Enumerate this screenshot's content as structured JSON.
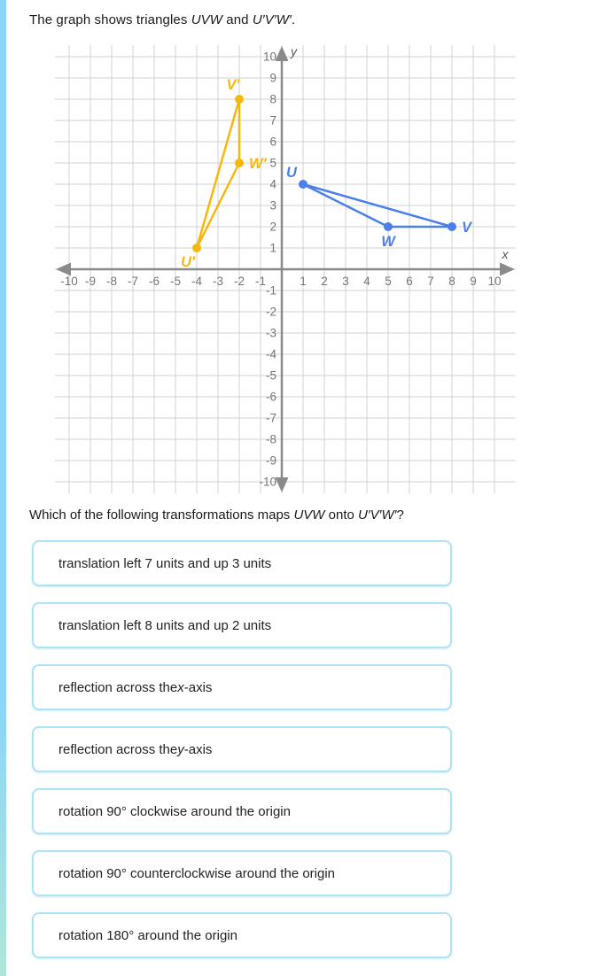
{
  "colors": {
    "accent_bar_top": "#8dd5f7",
    "accent_bar_bottom": "#aee6d9",
    "button_border": "#aee3f7",
    "grid": "#d2d2d2",
    "axis": "#8a8a8a",
    "tick_text": "#757575",
    "axis_letter": "#555555",
    "triangle_uvw": "#4a80e8",
    "triangle_primed": "#f7b80d"
  },
  "title_parts": [
    {
      "t": "The graph shows triangles "
    },
    {
      "t": "UVW",
      "i": true
    },
    {
      "t": " and "
    },
    {
      "t": "U′V′W′",
      "i": true
    },
    {
      "t": "."
    }
  ],
  "question_parts": [
    {
      "t": "Which of the following transformations maps "
    },
    {
      "t": "UVW",
      "i": true
    },
    {
      "t": " onto "
    },
    {
      "t": "U′V′W′",
      "i": true
    },
    {
      "t": "?"
    }
  ],
  "options": [
    {
      "parts": [
        {
          "t": "translation left 7 units and up 3 units"
        }
      ]
    },
    {
      "parts": [
        {
          "t": "translation left 8 units and up 2 units"
        }
      ]
    },
    {
      "parts": [
        {
          "t": "reflection across the "
        },
        {
          "t": "x",
          "i": true
        },
        {
          "t": "-axis"
        }
      ]
    },
    {
      "parts": [
        {
          "t": "reflection across the "
        },
        {
          "t": "y",
          "i": true
        },
        {
          "t": "-axis"
        }
      ]
    },
    {
      "parts": [
        {
          "t": "rotation 90° clockwise around the origin"
        }
      ]
    },
    {
      "parts": [
        {
          "t": "rotation 90° counterclockwise around the origin"
        }
      ]
    },
    {
      "parts": [
        {
          "t": "rotation 180° around the origin"
        }
      ]
    }
  ],
  "chart_data": {
    "type": "scatter",
    "title": "",
    "xlabel": "x",
    "ylabel": "y",
    "xlim": [
      -10,
      10
    ],
    "ylim": [
      -10,
      10
    ],
    "grid": true,
    "tick_step": 1,
    "series": [
      {
        "name": "UVW",
        "color": "#4a80e8",
        "closed": true,
        "points": [
          {
            "label": "U",
            "x": 1,
            "y": 4,
            "label_pos": "above-left"
          },
          {
            "label": "V",
            "x": 8,
            "y": 2,
            "label_pos": "right"
          },
          {
            "label": "W",
            "x": 5,
            "y": 2,
            "label_pos": "below"
          }
        ]
      },
      {
        "name": "U′V′W′",
        "color": "#f7b80d",
        "closed": true,
        "points": [
          {
            "label": "U′",
            "x": -4,
            "y": 1,
            "label_pos": "below-left"
          },
          {
            "label": "V′",
            "x": -2,
            "y": 8,
            "label_pos": "above"
          },
          {
            "label": "W′",
            "x": -2,
            "y": 5,
            "label_pos": "right"
          }
        ]
      }
    ]
  }
}
